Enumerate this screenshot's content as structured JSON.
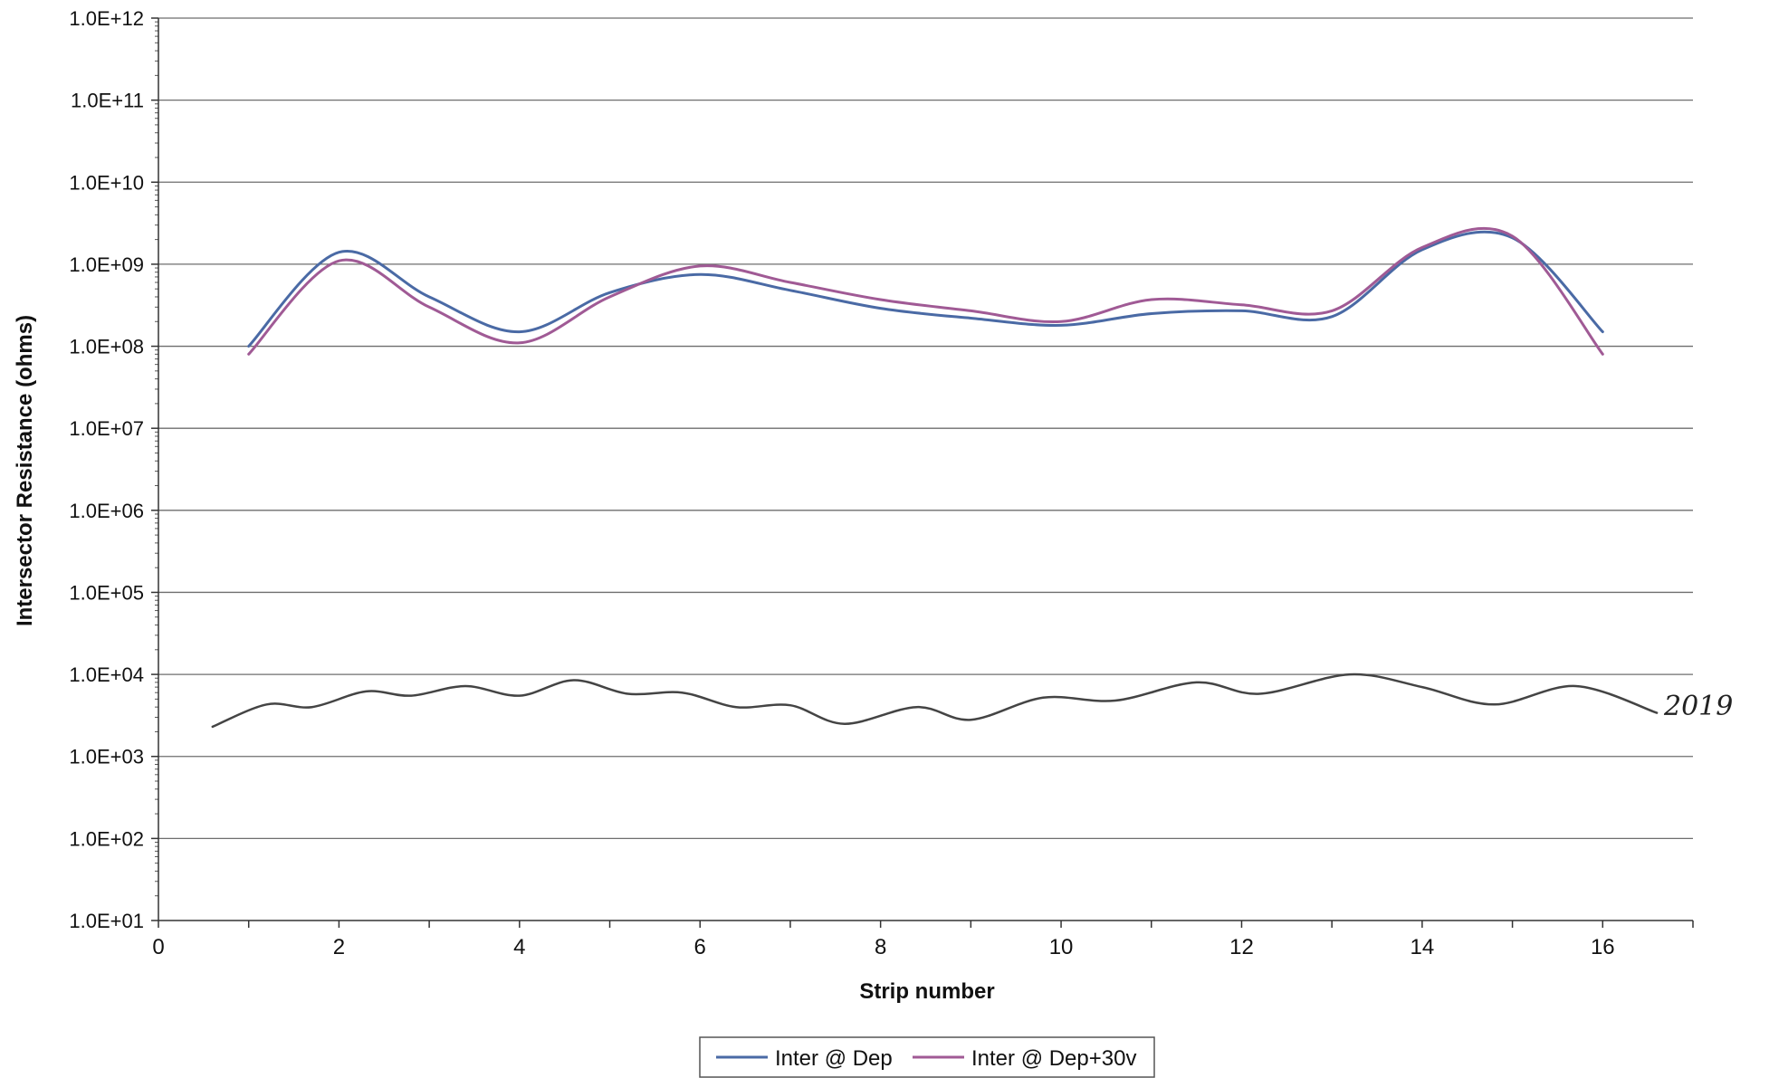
{
  "chart_data": {
    "type": "line",
    "title": "",
    "xlabel": "Strip number",
    "ylabel": "Intersector Resistance (ohms)",
    "xlim": [
      0,
      17
    ],
    "ylim": [
      10,
      1000000000000
    ],
    "y_scale": "log",
    "grid": "horizontal",
    "legend_position": "bottom",
    "x_ticks": [
      0,
      2,
      4,
      6,
      8,
      10,
      12,
      14,
      16
    ],
    "x_tick_labels": [
      "0",
      "2",
      "4",
      "6",
      "8",
      "10",
      "12",
      "14",
      "16"
    ],
    "y_ticks": [
      10,
      100,
      1000,
      10000,
      100000,
      1000000,
      10000000,
      100000000,
      1000000000,
      10000000000,
      100000000000,
      1000000000000
    ],
    "y_tick_labels": [
      "1.0E+01",
      "1.0E+02",
      "1.0E+03",
      "1.0E+04",
      "1.0E+05",
      "1.0E+06",
      "1.0E+07",
      "1.0E+08",
      "1.0E+09",
      "1.0E+10",
      "1.0E+11",
      "1.0E+12"
    ],
    "series": [
      {
        "name": "Inter @ Dep",
        "color": "#4a6aa5",
        "x": [
          1,
          2,
          3,
          4,
          5,
          6,
          7,
          8,
          9,
          10,
          11,
          12,
          13,
          14,
          15,
          16
        ],
        "y": [
          100000000,
          1400000000,
          400000000,
          150000000,
          450000000,
          750000000,
          480000000,
          290000000,
          220000000,
          180000000,
          250000000,
          270000000,
          230000000,
          1500000000,
          2100000000,
          150000000
        ]
      },
      {
        "name": "Inter @ Dep+30v",
        "color": "#a05a95",
        "x": [
          1,
          2,
          3,
          4,
          5,
          6,
          7,
          8,
          9,
          10,
          11,
          12,
          13,
          14,
          15,
          16
        ],
        "y": [
          80000000,
          1100000000,
          300000000,
          110000000,
          400000000,
          950000000,
          600000000,
          370000000,
          270000000,
          200000000,
          370000000,
          320000000,
          270000000,
          1600000000,
          2200000000,
          80000000
        ]
      },
      {
        "name": "",
        "color": "#444444",
        "handwritten": true,
        "x": [
          0.6,
          1.2,
          1.7,
          2.3,
          2.8,
          3.4,
          4.0,
          4.6,
          5.2,
          5.8,
          6.4,
          7.0,
          7.6,
          8.4,
          9.0,
          9.8,
          10.6,
          11.5,
          12.2,
          13.2,
          14.0,
          14.8,
          15.7,
          16.6
        ],
        "y": [
          2300,
          4300,
          4000,
          6200,
          5500,
          7200,
          5500,
          8500,
          5800,
          6000,
          4000,
          4200,
          2500,
          4000,
          2800,
          5200,
          4800,
          8000,
          5800,
          10000,
          7000,
          4300,
          7200,
          3400
        ]
      }
    ],
    "annotations": [
      {
        "text": "2019",
        "handwritten": true
      }
    ]
  }
}
